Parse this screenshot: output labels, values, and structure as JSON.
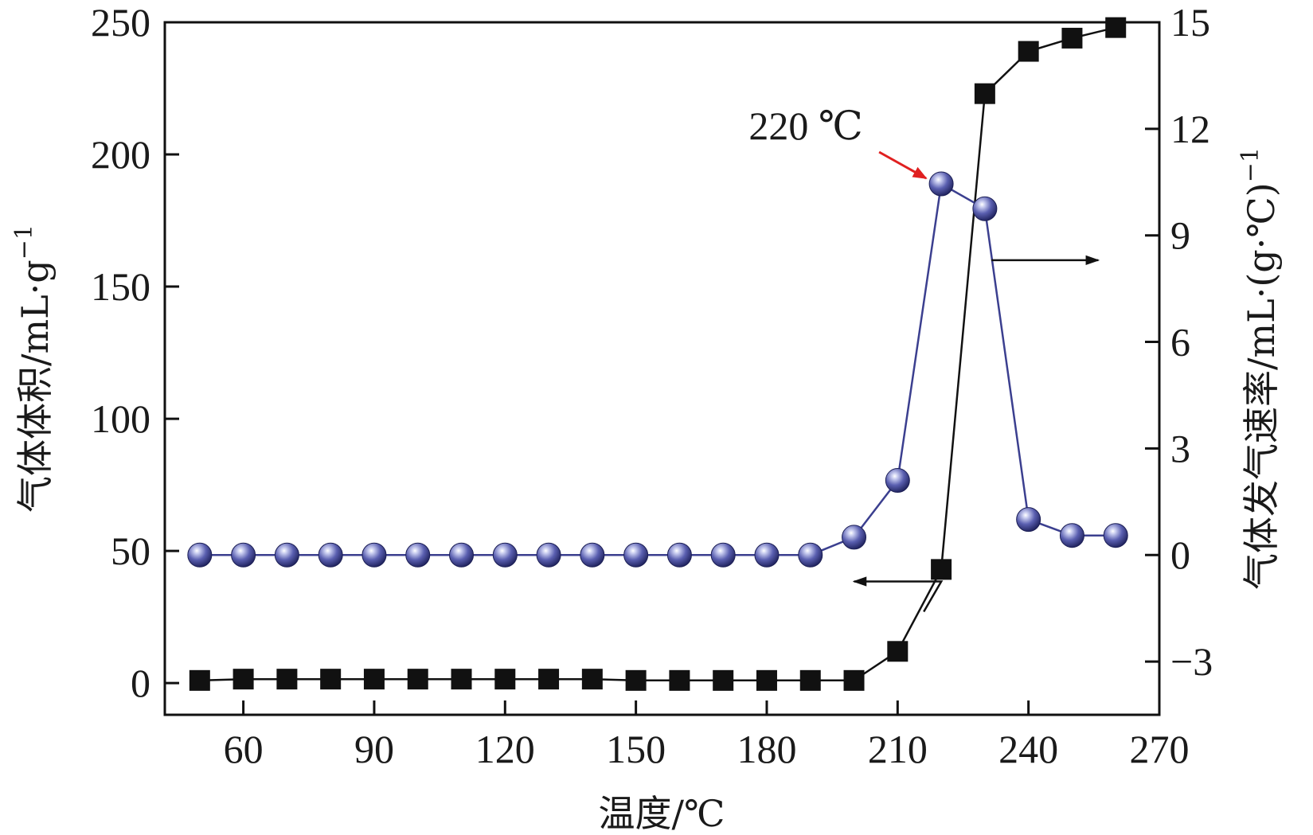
{
  "chart_data": {
    "type": "line",
    "xlabel": "温度/℃",
    "ylabel_left": "气体体积/mL·g",
    "ylabel_left_sup": "−1",
    "ylabel_right": "气体发气速率/mL·(g·℃)",
    "ylabel_right_sup": "−1",
    "xlim": [
      42,
      270
    ],
    "x_ticks": [
      60,
      90,
      120,
      150,
      180,
      210,
      240,
      270
    ],
    "ylim_left": [
      -12,
      250
    ],
    "y_ticks_left": [
      0,
      50,
      100,
      150,
      200,
      250
    ],
    "ylim_right": [
      -4.5,
      15
    ],
    "y_ticks_right": [
      -3,
      0,
      3,
      6,
      9,
      12,
      15
    ],
    "y_tick_labels_right": [
      "−3",
      "0",
      "3",
      "6",
      "9",
      "12",
      "15"
    ],
    "grid": false,
    "x": [
      50,
      60,
      70,
      80,
      90,
      100,
      110,
      120,
      130,
      140,
      150,
      160,
      170,
      180,
      190,
      200,
      210,
      220,
      230,
      240,
      250,
      260
    ],
    "series": [
      {
        "axis": "left",
        "marker": "square",
        "color": "#111111",
        "values": [
          1,
          1.5,
          1.5,
          1.5,
          1.5,
          1.5,
          1.5,
          1.5,
          1.5,
          1.5,
          1,
          1,
          1,
          1,
          1,
          1,
          12,
          43,
          223,
          239,
          244,
          248
        ]
      },
      {
        "axis": "right",
        "marker": "sphere",
        "color": "#3b3f8f",
        "values": [
          0,
          0,
          0,
          0,
          0,
          0,
          0,
          0,
          0,
          0,
          0,
          0,
          0,
          0,
          0,
          0.5,
          2.1,
          10.45,
          9.75,
          1.0,
          0.55,
          0.55
        ]
      }
    ],
    "annotations": [
      {
        "text": "220 ℃",
        "arrow_color": "#e02020",
        "target_x": 220,
        "target_series": 1
      }
    ],
    "axis_indicators": [
      {
        "points_to": "left",
        "series": 0
      },
      {
        "points_to": "right",
        "series": 1
      }
    ]
  }
}
